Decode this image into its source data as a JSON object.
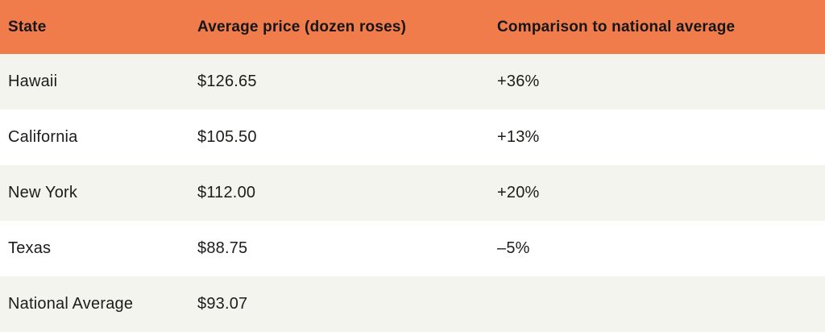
{
  "chart_data": {
    "type": "table",
    "columns": [
      "State",
      "Average price (dozen roses)",
      "Comparison to national average"
    ],
    "rows": [
      {
        "state": "Hawaii",
        "price": "$126.65",
        "comparison": "+36%"
      },
      {
        "state": "California",
        "price": "$105.50",
        "comparison": "+13%"
      },
      {
        "state": "New York",
        "price": "$112.00",
        "comparison": "+20%"
      },
      {
        "state": "Texas",
        "price": "$88.75",
        "comparison": "–5%"
      },
      {
        "state": "National Average",
        "price": "$93.07",
        "comparison": ""
      }
    ],
    "prices_numeric": [
      126.65,
      105.5,
      112.0,
      88.75,
      93.07
    ],
    "comparison_percent_numeric": [
      36,
      13,
      20,
      -5,
      null
    ]
  },
  "colors": {
    "header_bg": "#f17c4b",
    "row_alt_bg": "#f4f4ee",
    "row_bg": "#ffffff",
    "text": "#1c1c1a",
    "header_text": "#161616"
  }
}
